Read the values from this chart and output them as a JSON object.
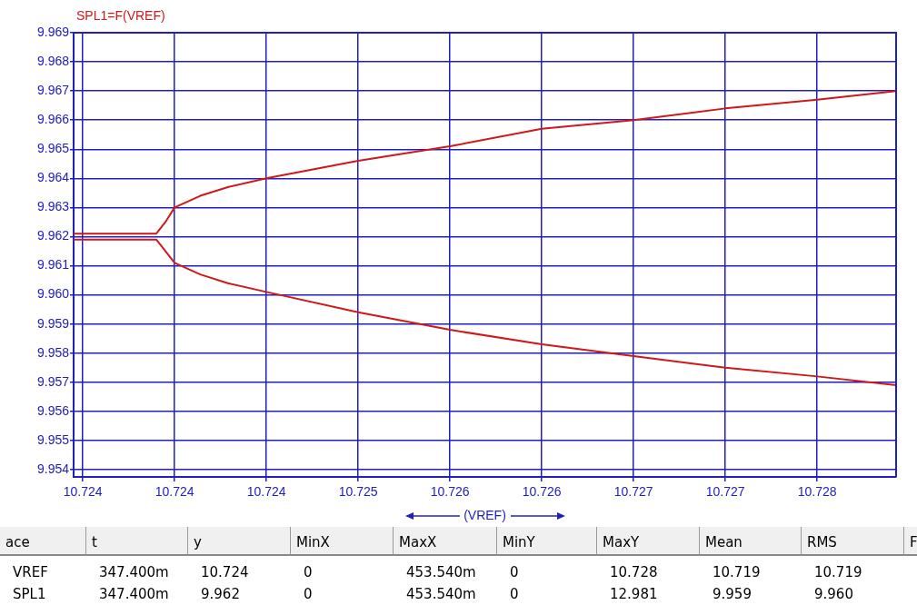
{
  "chart_data": [
    {
      "type": "line",
      "title": "SPL1=F(VREF)",
      "xlabel": "(VREF)",
      "xlim": [
        10.72345,
        10.72793
      ],
      "xticks": [
        {
          "value": 10.7235,
          "label": "10.724"
        },
        {
          "value": 10.724,
          "label": "10.724"
        },
        {
          "value": 10.7245,
          "label": "10.724"
        },
        {
          "value": 10.725,
          "label": "10.725"
        },
        {
          "value": 10.7255,
          "label": "10.726"
        },
        {
          "value": 10.726,
          "label": "10.726"
        },
        {
          "value": 10.7265,
          "label": "10.727"
        },
        {
          "value": 10.727,
          "label": "10.727"
        },
        {
          "value": 10.7275,
          "label": "10.728"
        }
      ],
      "ylim": [
        9.95375,
        9.969
      ],
      "yticks": [
        {
          "value": 9.954,
          "label": "9.954"
        },
        {
          "value": 9.955,
          "label": "9.955"
        },
        {
          "value": 9.956,
          "label": "9.956"
        },
        {
          "value": 9.957,
          "label": "9.957"
        },
        {
          "value": 9.958,
          "label": "9.958"
        },
        {
          "value": 9.959,
          "label": "9.959"
        },
        {
          "value": 9.96,
          "label": "9.960"
        },
        {
          "value": 9.961,
          "label": "9.961"
        },
        {
          "value": 9.962,
          "label": "9.962"
        },
        {
          "value": 9.963,
          "label": "9.963"
        },
        {
          "value": 9.964,
          "label": "9.964"
        },
        {
          "value": 9.965,
          "label": "9.965"
        },
        {
          "value": 9.966,
          "label": "9.966"
        },
        {
          "value": 9.967,
          "label": "9.967"
        },
        {
          "value": 9.968,
          "label": "9.968"
        },
        {
          "value": 9.969,
          "label": "9.969"
        }
      ],
      "grid": true,
      "legend": false,
      "marker": "none",
      "line_style": "solid",
      "series": [
        {
          "color": "#d01818",
          "x": [
            10.72345,
            10.7239,
            10.72395,
            10.724,
            10.72414,
            10.72429,
            10.7245,
            10.725,
            10.7255,
            10.726,
            10.7265,
            10.727,
            10.7275,
            10.72793
          ],
          "values": [
            9.9621,
            9.9621,
            9.9625,
            9.963,
            9.9634,
            9.9637,
            9.964,
            9.9646,
            9.9651,
            9.9657,
            9.966,
            9.9664,
            9.9667,
            9.967
          ]
        },
        {
          "color": "#d01818",
          "x": [
            10.72345,
            10.7239,
            10.72395,
            10.724,
            10.72414,
            10.72429,
            10.7245,
            10.725,
            10.7255,
            10.726,
            10.7265,
            10.727,
            10.7275,
            10.72793
          ],
          "values": [
            9.9619,
            9.9619,
            9.9615,
            9.9611,
            9.9607,
            9.9604,
            9.9601,
            9.9594,
            9.9588,
            9.9583,
            9.9579,
            9.9575,
            9.9572,
            9.9569
          ]
        }
      ]
    },
    {
      "type": "other",
      "categories": [
        "ace",
        "t",
        "y",
        "MinX",
        "MaxX",
        "MinY",
        "MaxY",
        "Mean",
        "RMS",
        "F"
      ],
      "y_categories": [
        "VREF",
        "SPL1"
      ],
      "cell_labels": [
        [
          "347.400m",
          "10.724",
          "0",
          "453.540m",
          "0",
          "10.728",
          "10.719",
          "10.719",
          null
        ],
        [
          "347.400m",
          "9.962",
          "0",
          "453.540m",
          "0",
          "12.981",
          "9.959",
          "9.960",
          null
        ]
      ]
    }
  ]
}
